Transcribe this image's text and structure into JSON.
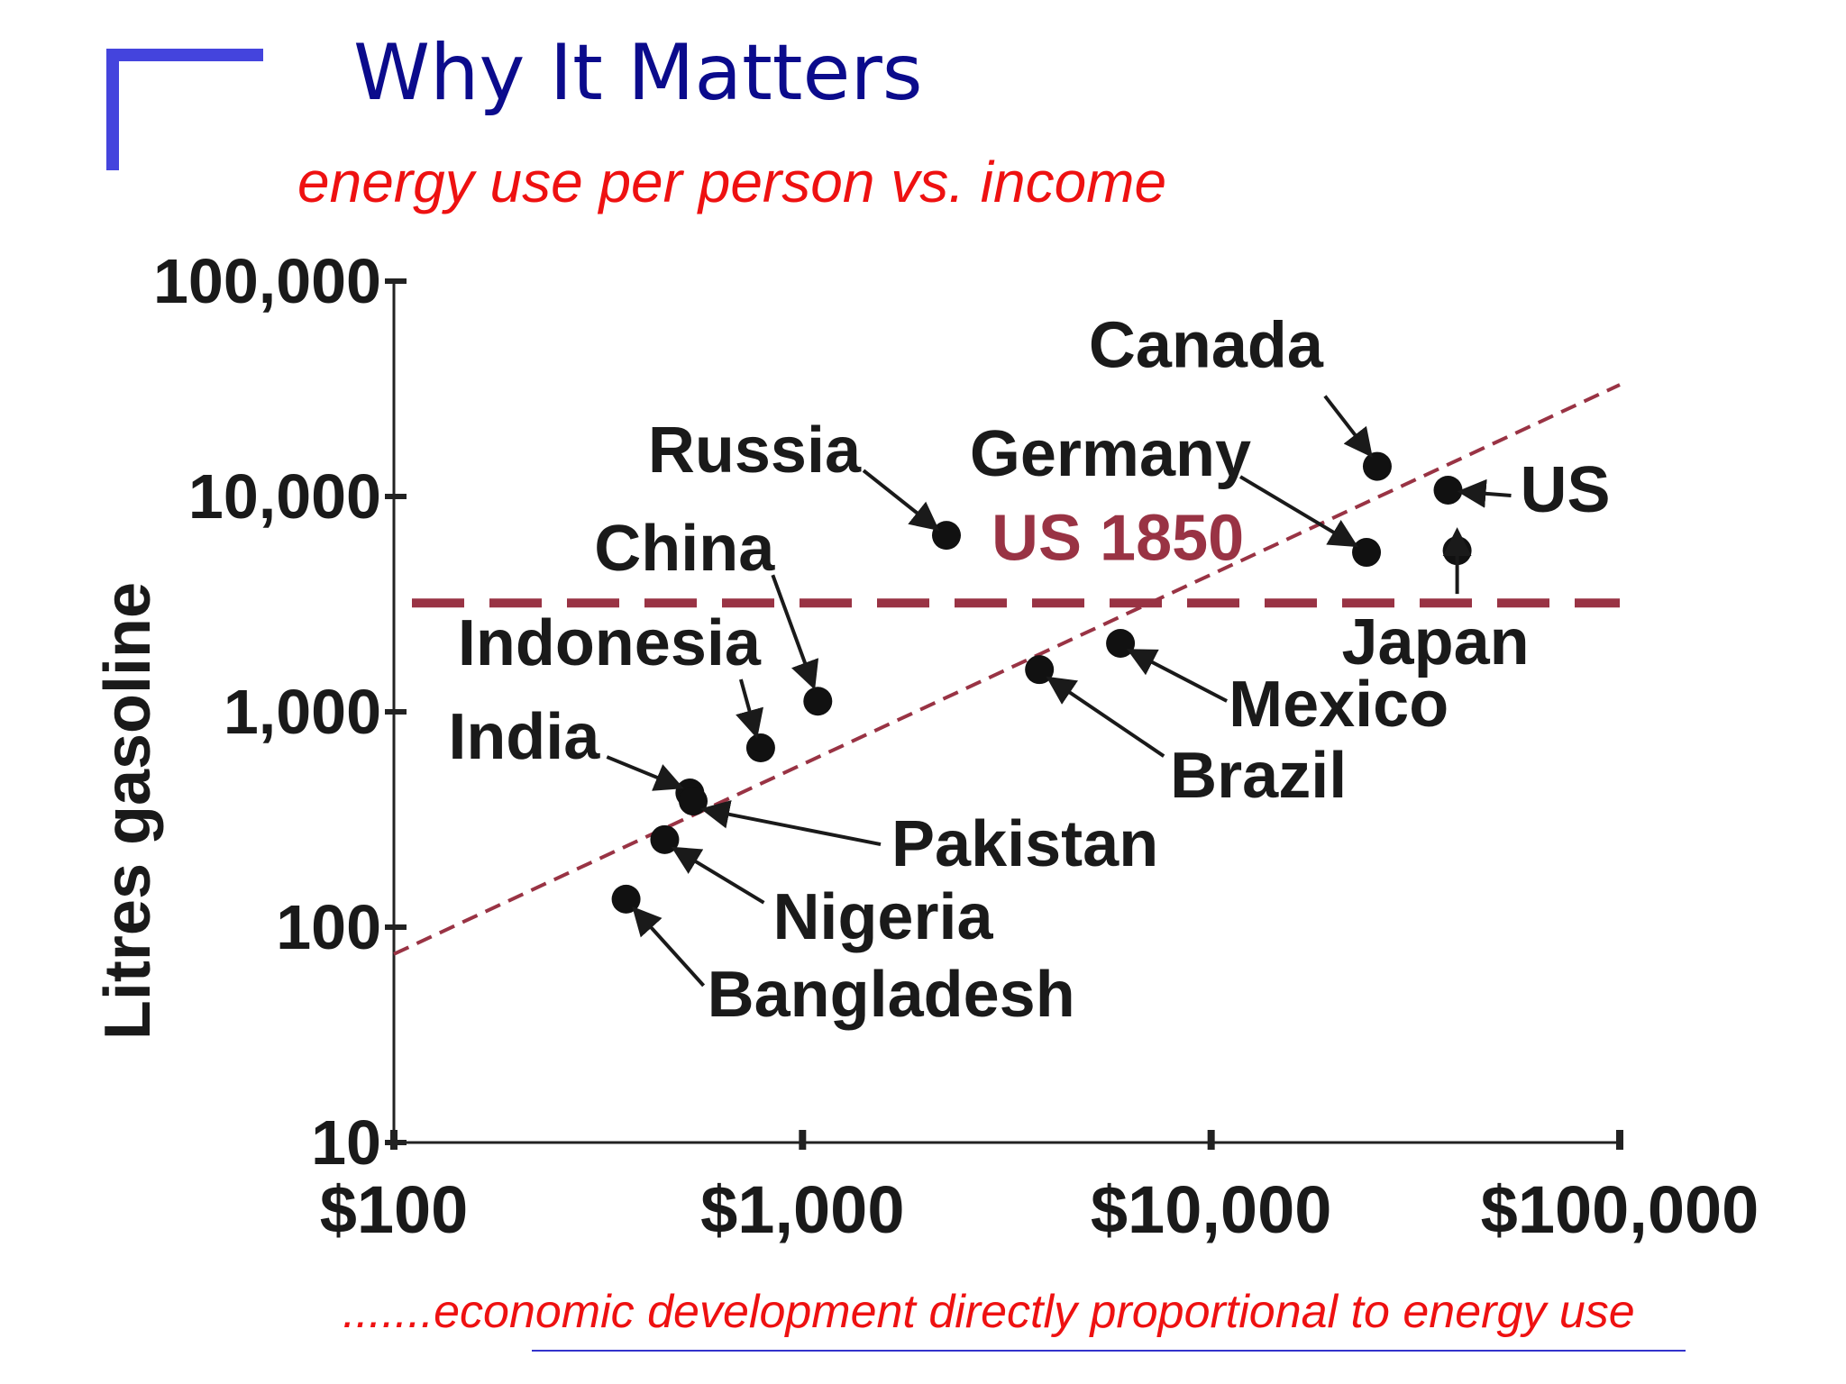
{
  "slide": {
    "title": "Why It Matters",
    "subtitle": "energy use per person vs. income",
    "footnote": ".......economic development directly proportional to energy use",
    "title_color": "#0b0b8c",
    "accent_color": "#ee1111",
    "corner_mark_color": "#4444dd"
  },
  "chart_data": {
    "type": "scatter",
    "ylabel": "Litres gasoline",
    "xlabel": "",
    "x_scale": "log",
    "y_scale": "log",
    "xlim": [
      100,
      100000
    ],
    "ylim": [
      10,
      100000
    ],
    "x_ticks": [
      {
        "value": 100,
        "label": "$100"
      },
      {
        "value": 1000,
        "label": "$1,000"
      },
      {
        "value": 10000,
        "label": "$10,000"
      },
      {
        "value": 100000,
        "label": "$100,000"
      }
    ],
    "y_ticks": [
      {
        "value": 10,
        "label": "10"
      },
      {
        "value": 100,
        "label": "100"
      },
      {
        "value": 1000,
        "label": "1,000"
      },
      {
        "value": 10000,
        "label": "10,000"
      },
      {
        "value": 100000,
        "label": "100,000"
      }
    ],
    "points": [
      {
        "name": "Bangladesh",
        "x": 370,
        "y": 135
      },
      {
        "name": "Nigeria",
        "x": 460,
        "y": 255
      },
      {
        "name": "India",
        "x": 530,
        "y": 420
      },
      {
        "name": "Pakistan",
        "x": 540,
        "y": 385
      },
      {
        "name": "Indonesia",
        "x": 790,
        "y": 680
      },
      {
        "name": "China",
        "x": 1090,
        "y": 1120
      },
      {
        "name": "Russia",
        "x": 2250,
        "y": 6600
      },
      {
        "name": "Brazil",
        "x": 3800,
        "y": 1570
      },
      {
        "name": "Mexico",
        "x": 6000,
        "y": 2080
      },
      {
        "name": "Germany",
        "x": 24000,
        "y": 5500
      },
      {
        "name": "Canada",
        "x": 25500,
        "y": 13800
      },
      {
        "name": "US",
        "x": 38000,
        "y": 10700
      },
      {
        "name": "Japan",
        "x": 40000,
        "y": 5600
      }
    ],
    "reference_line": {
      "label": "US 1850",
      "y": 3200,
      "color": "#993344"
    },
    "trend_line": {
      "start": [
        100,
        75
      ],
      "end": [
        100000,
        33000
      ],
      "color": "#993344"
    },
    "grid": false,
    "legend": "none"
  }
}
